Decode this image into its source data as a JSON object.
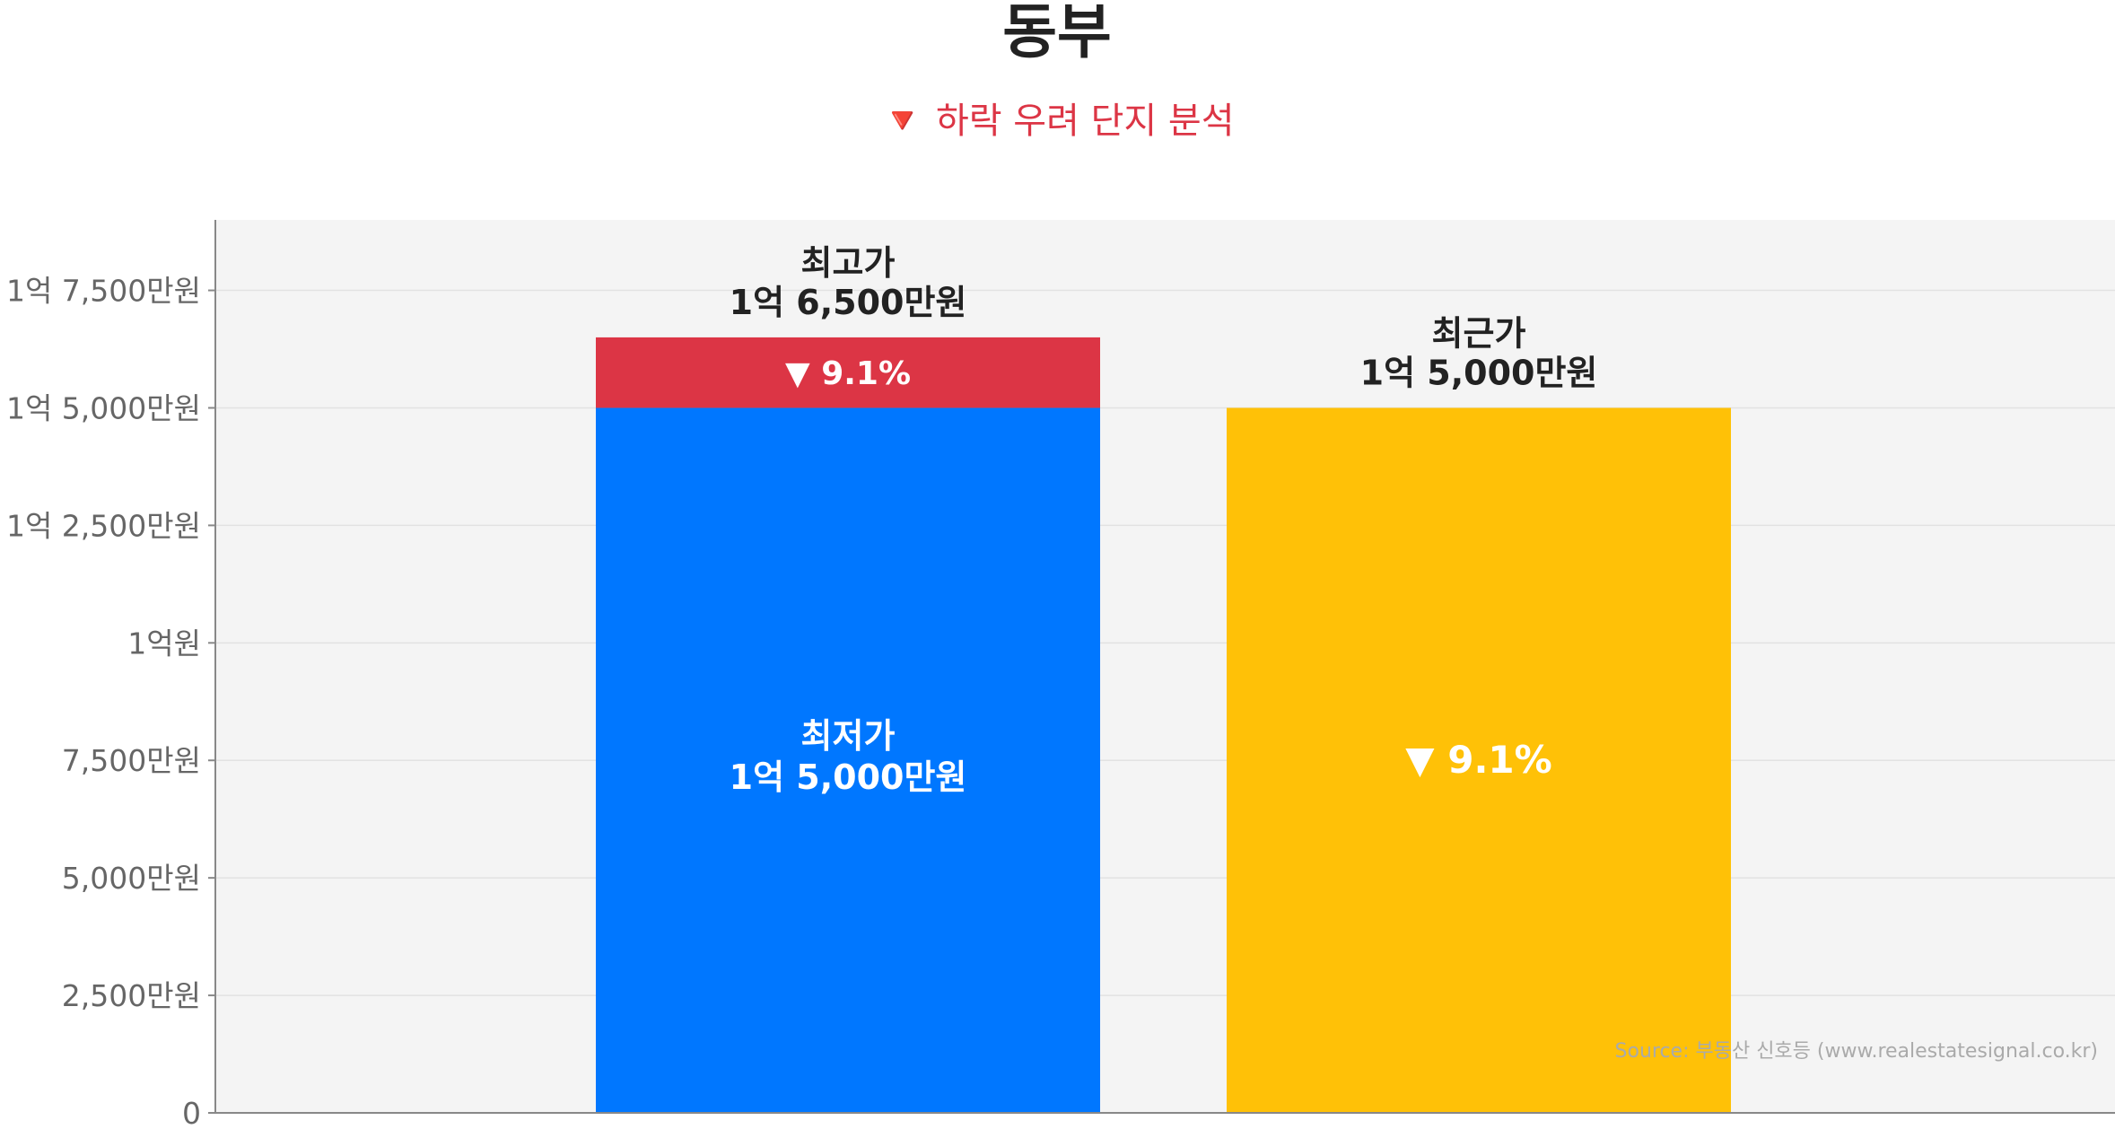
{
  "chart_data": {
    "type": "bar",
    "title": "동부",
    "subtitle": "🔻 하락 우려 단지 분석",
    "ylim": [
      0,
      19000
    ],
    "yticks": [
      {
        "value": 0,
        "label": "0"
      },
      {
        "value": 2500,
        "label": "2,500만원"
      },
      {
        "value": 5000,
        "label": "5,000만원"
      },
      {
        "value": 7500,
        "label": "7,500만원"
      },
      {
        "value": 10000,
        "label": "1억원"
      },
      {
        "value": 12500,
        "label": "1억 2,500만원"
      },
      {
        "value": 15000,
        "label": "1억 5,000만원"
      },
      {
        "value": 17500,
        "label": "1억 7,500만원"
      }
    ],
    "bars": [
      {
        "base_value": 15000,
        "base_label": "최저가",
        "base_value_text": "1억 5,000만원",
        "top_value": 16500,
        "top_label": "최고가",
        "top_value_text": "1억 6,500만원",
        "diff_text": "▼ 9.1%",
        "base_color": "#0077ff",
        "top_color": "#dc3545"
      },
      {
        "value": 15000,
        "label": "최근가",
        "value_text": "1억 5,000만원",
        "inner_text": "▼ 9.1%",
        "color": "#ffc107"
      }
    ],
    "grid": true,
    "source": "Source: 부동산 신호등 (www.realestatesignal.co.kr)"
  }
}
